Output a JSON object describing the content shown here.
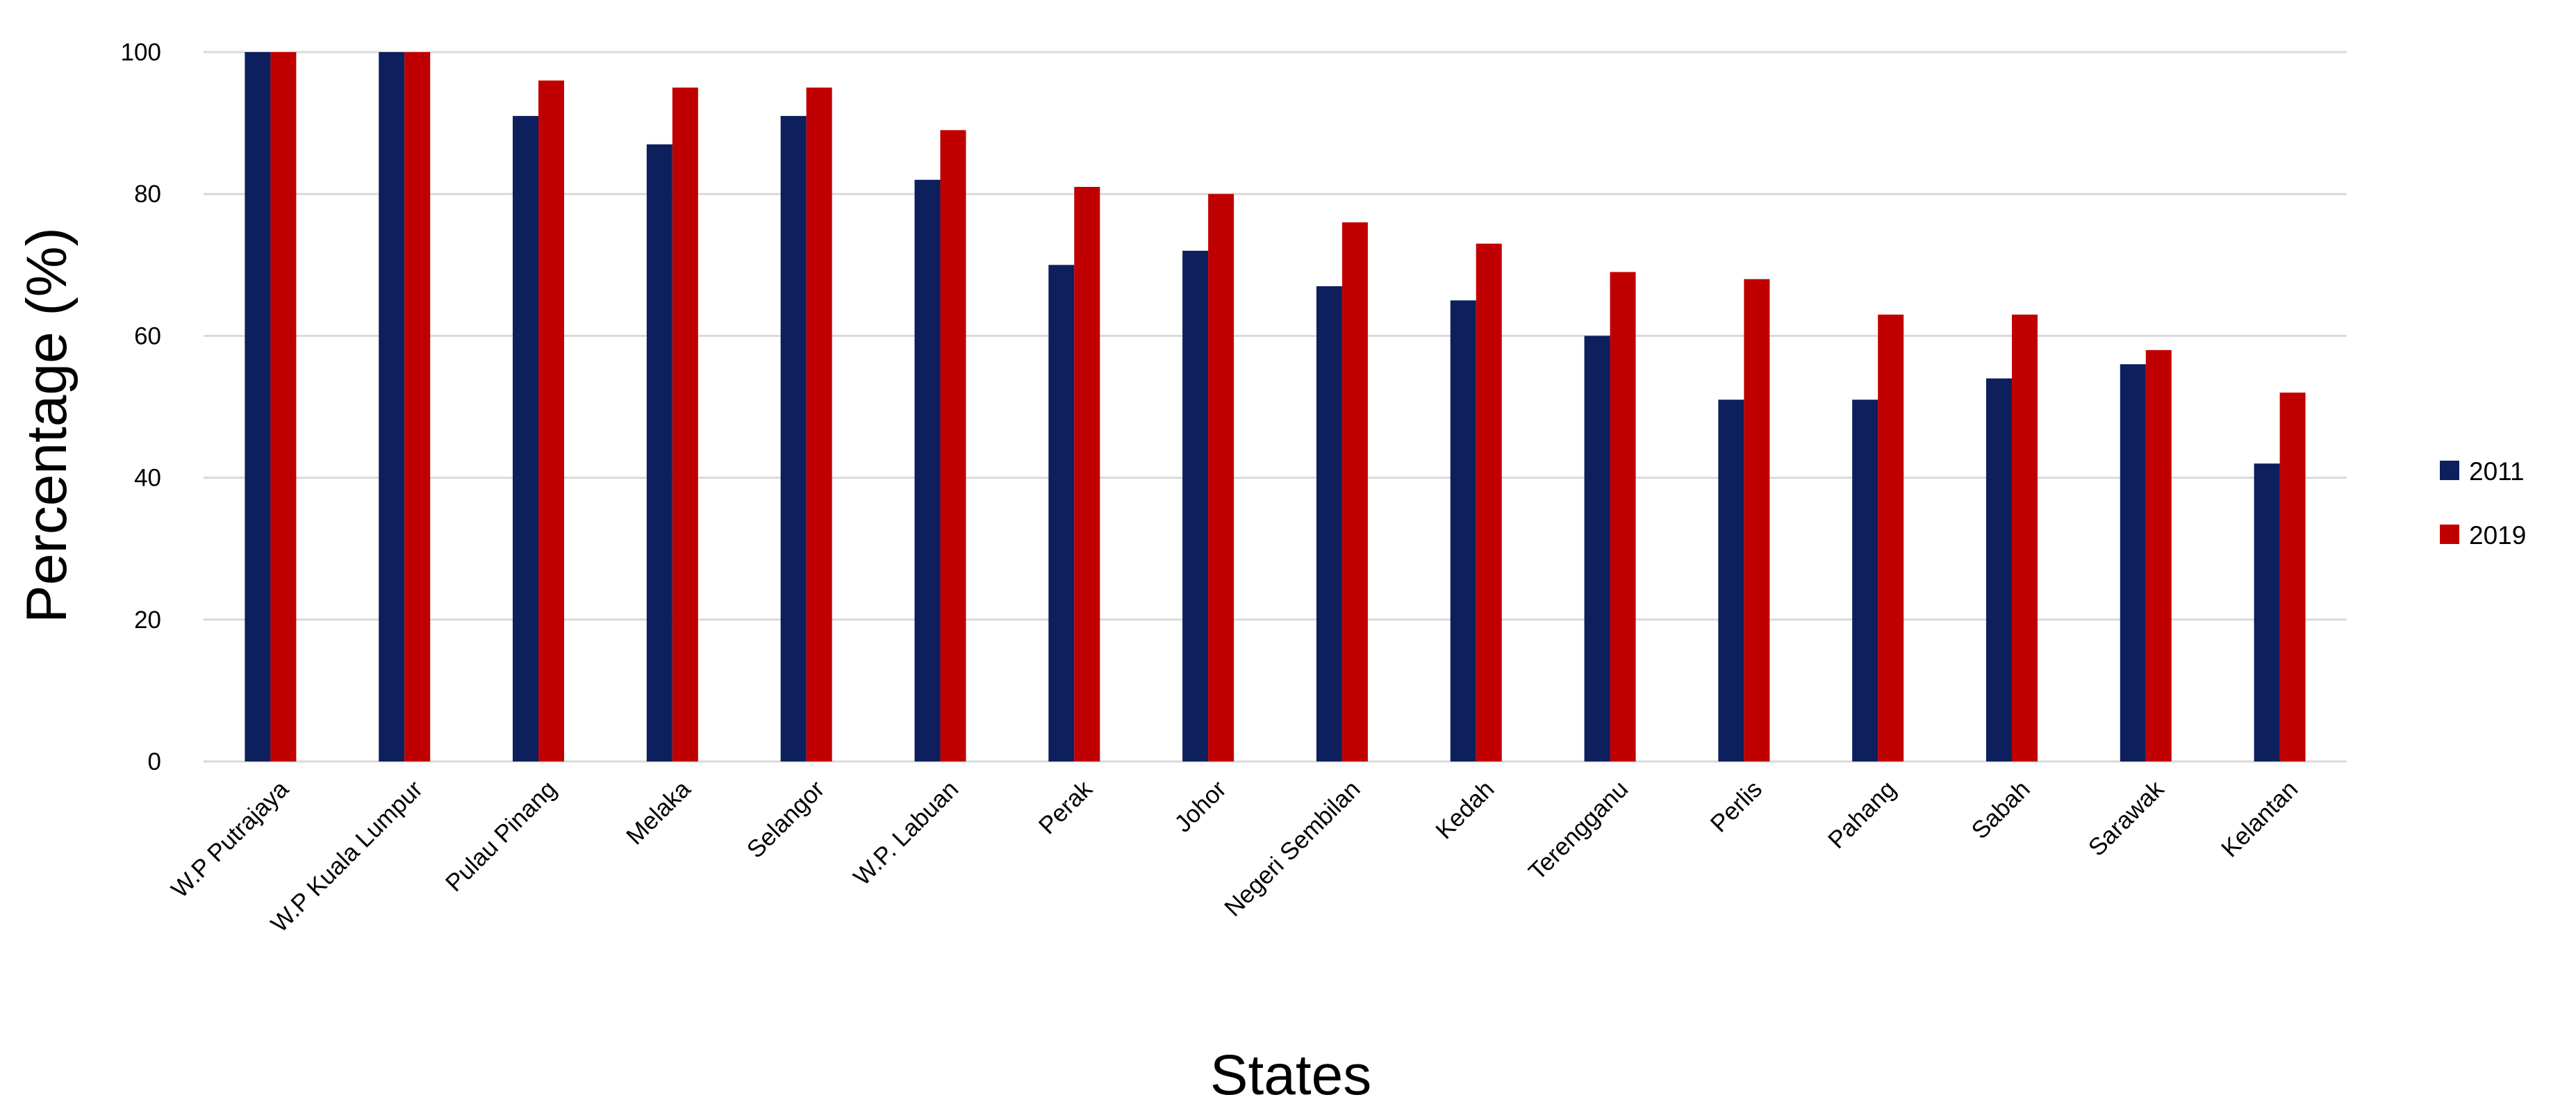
{
  "chart_data": {
    "type": "bar",
    "title": "",
    "xlabel": "States",
    "ylabel": "Percentage (%)",
    "ylim": [
      0,
      100
    ],
    "yticks": [
      "0",
      "20",
      "40",
      "60",
      "80",
      "100"
    ],
    "grid": true,
    "legend_position": "right",
    "categories": [
      "W.P Putrajaya",
      "W.P Kuala Lumpur",
      "Pulau Pinang",
      "Melaka",
      "Selangor",
      "W.P. Labuan",
      "Perak",
      "Johor",
      "Negeri Sembilan",
      "Kedah",
      "Terengganu",
      "Perlis",
      "Pahang",
      "Sabah",
      "Sarawak",
      "Kelantan"
    ],
    "series": [
      {
        "name": "2011",
        "color": "#0d1f5c",
        "values": [
          100,
          100,
          91,
          87,
          91,
          82,
          70,
          72,
          67,
          65,
          60,
          51,
          51,
          54,
          56,
          42
        ]
      },
      {
        "name": "2019",
        "color": "#c00000",
        "values": [
          100,
          100,
          96,
          95,
          95,
          89,
          81,
          80,
          76,
          73,
          69,
          68,
          63,
          63,
          58,
          52
        ]
      }
    ]
  }
}
